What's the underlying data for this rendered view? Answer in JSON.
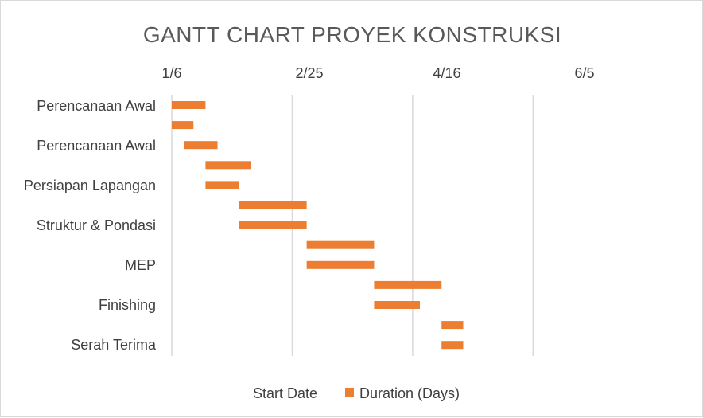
{
  "chart_data": {
    "type": "bar",
    "orientation": "horizontal-gantt",
    "title": "GANTT CHART PROYEK KONSTRUKSI",
    "x_axis_position": "top",
    "x_tick_labels": [
      "1/6",
      "2/25",
      "4/16",
      "6/5"
    ],
    "xlim": [
      "2021-01-06",
      "2021-08-01"
    ],
    "grid": true,
    "y_category_labels": [
      "Perencanaan Awal",
      "Perencanaan Awal",
      "Persiapan Lapangan",
      "Struktur & Pondasi",
      "MEP",
      "Finishing",
      "Serah Terima"
    ],
    "tasks": [
      {
        "start": "2021-01-06",
        "duration": 14
      },
      {
        "start": "2021-01-06",
        "duration": 9
      },
      {
        "start": "2021-01-11",
        "duration": 14
      },
      {
        "start": "2021-01-20",
        "duration": 19
      },
      {
        "start": "2021-01-20",
        "duration": 14
      },
      {
        "start": "2021-02-03",
        "duration": 28
      },
      {
        "start": "2021-02-03",
        "duration": 28
      },
      {
        "start": "2021-03-03",
        "duration": 28
      },
      {
        "start": "2021-03-03",
        "duration": 28
      },
      {
        "start": "2021-03-31",
        "duration": 28
      },
      {
        "start": "2021-03-31",
        "duration": 19
      },
      {
        "start": "2021-04-28",
        "duration": 9
      },
      {
        "start": "2021-04-28",
        "duration": 9
      }
    ],
    "legend": {
      "position": "bottom",
      "entries": [
        "Start Date",
        "Duration (Days)"
      ]
    },
    "colors": {
      "duration": "#ED7D31",
      "grid": "#d9d9d9"
    }
  }
}
